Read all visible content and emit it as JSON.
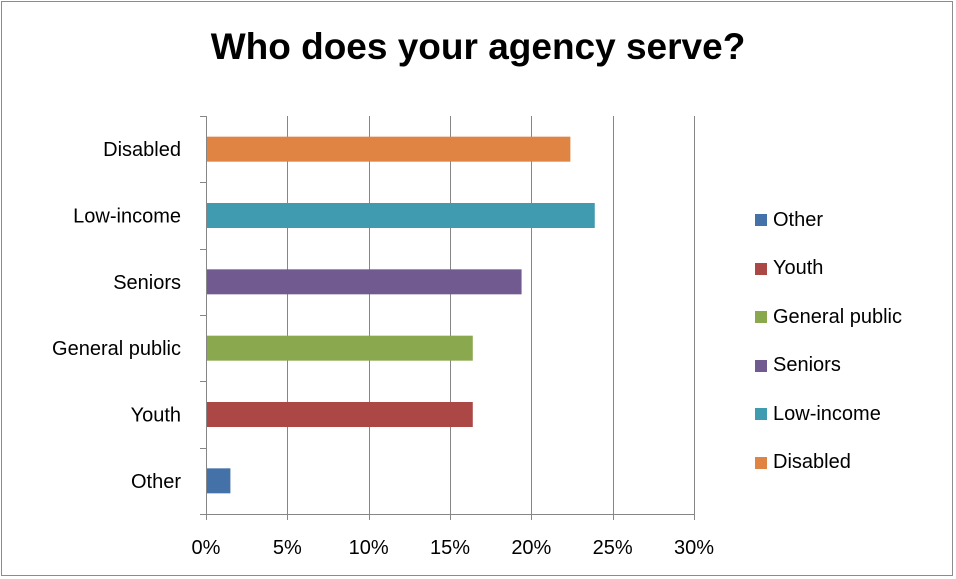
{
  "chart_data": {
    "type": "bar",
    "orientation": "horizontal",
    "title": "Who does your agency serve?",
    "categories": [
      "Other",
      "Youth",
      "General public",
      "Seniors",
      "Low-income",
      "Disabled"
    ],
    "values": [
      1.5,
      16.4,
      16.4,
      19.4,
      23.9,
      22.4
    ],
    "colors": [
      "#4472a8",
      "#ab4745",
      "#8aa84e",
      "#715a90",
      "#409bb1",
      "#df8443"
    ],
    "xlim": [
      0,
      30
    ],
    "x_ticks": [
      0,
      5,
      10,
      15,
      20,
      25,
      30
    ],
    "x_tick_labels": [
      "0%",
      "5%",
      "10%",
      "15%",
      "20%",
      "25%",
      "30%"
    ],
    "xlabel": "",
    "ylabel": "",
    "grid": "vertical gridlines",
    "legend_position": "right",
    "legend": [
      "Other",
      "Youth",
      "General public",
      "Seniors",
      "Low-income",
      "Disabled"
    ]
  }
}
